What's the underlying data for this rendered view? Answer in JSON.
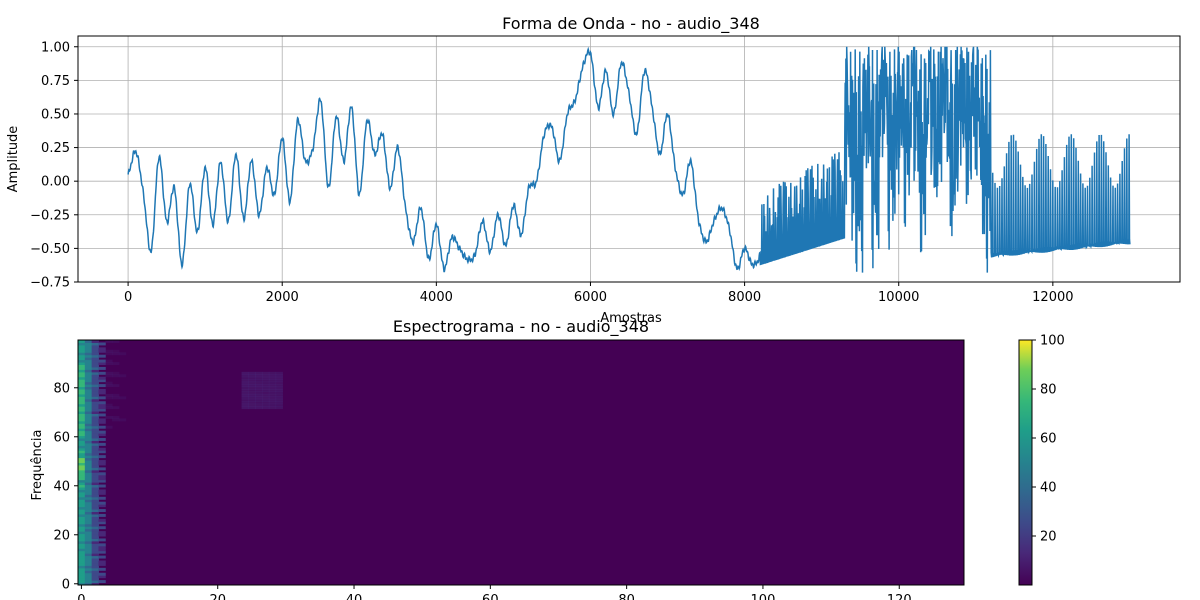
{
  "chart_data": [
    {
      "type": "line",
      "title": "Forma de Onda - no - audio_348",
      "xlabel": "Amostras",
      "ylabel": "Amplitude",
      "xlim": [
        -650,
        13650
      ],
      "ylim": [
        -0.75,
        1.08
      ],
      "grid": true,
      "x_ticks": [
        "0",
        "2000",
        "4000",
        "6000",
        "8000",
        "10000",
        "12000"
      ],
      "y_ticks": [
        "−0.75",
        "−0.50",
        "−0.25",
        "0.00",
        "0.25",
        "0.50",
        "0.75",
        "1.00"
      ],
      "color": "#1f77b4",
      "series": [
        {
          "x": [
            0,
            100,
            200,
            300,
            400,
            500,
            600,
            700,
            800,
            900,
            1000,
            1100,
            1200,
            1300,
            1400,
            1500,
            1600,
            1700,
            1800,
            1900,
            2000,
            2100,
            2200,
            2300,
            2400,
            2500,
            2600,
            2700,
            2800,
            2900,
            3000,
            3100,
            3200,
            3300,
            3400,
            3500,
            3600,
            3700,
            3800,
            3900,
            4000,
            4100,
            4200,
            4300,
            4400,
            4500,
            4600,
            4700,
            4800,
            4900,
            5000,
            5100,
            5200,
            5300,
            5400,
            5500,
            5600,
            5700,
            5800,
            5900,
            6000,
            6100,
            6200,
            6300,
            6400,
            6500,
            6600,
            6700,
            6800,
            6900,
            7000,
            7100,
            7200,
            7300,
            7400,
            7500,
            7600,
            7700,
            7800,
            7900,
            8000,
            8100,
            8200,
            8300,
            8400,
            8500,
            8600,
            8700,
            8800,
            8900,
            9000,
            9100,
            9200,
            9300,
            9400,
            9500,
            9600,
            9700,
            9800,
            9900,
            10000,
            10100,
            10200,
            10300,
            10400,
            10500,
            10600,
            10700,
            10800,
            10900,
            11000,
            11100,
            11200,
            11300,
            11400,
            11500,
            11600,
            11700,
            11800,
            11900,
            12000,
            12100,
            12200,
            12300,
            12400,
            12500,
            12600,
            12700,
            12800,
            12900,
            13000
          ],
          "y": [
            0.05,
            0.22,
            -0.1,
            -0.52,
            0.18,
            -0.3,
            -0.05,
            -0.62,
            -0.02,
            -0.38,
            0.1,
            -0.32,
            0.14,
            -0.3,
            0.2,
            -0.28,
            0.15,
            -0.25,
            0.1,
            -0.1,
            0.32,
            -0.15,
            0.45,
            0.15,
            0.25,
            0.6,
            -0.05,
            0.48,
            0.15,
            0.55,
            -0.1,
            0.45,
            0.2,
            0.35,
            -0.05,
            0.25,
            -0.2,
            -0.45,
            -0.2,
            -0.58,
            -0.32,
            -0.65,
            -0.42,
            -0.5,
            -0.58,
            -0.55,
            -0.3,
            -0.52,
            -0.25,
            -0.48,
            -0.18,
            -0.4,
            -0.05,
            0.0,
            0.35,
            0.4,
            0.15,
            0.5,
            0.6,
            0.85,
            0.95,
            0.55,
            0.82,
            0.5,
            0.88,
            0.65,
            0.35,
            0.82,
            0.55,
            0.2,
            0.5,
            0.1,
            -0.1,
            0.15,
            -0.28,
            -0.45,
            -0.3,
            -0.2,
            -0.35,
            -0.65,
            -0.5,
            -0.62,
            -0.55,
            -0.25,
            -0.55,
            -0.2,
            -0.5,
            -0.1,
            -0.45,
            0.05,
            -0.42,
            0.2,
            -0.35,
            0.5,
            0.1,
            -0.2,
            0.6,
            -0.25,
            0.8,
            0.0,
            0.6,
            0.2,
            0.8,
            -0.1,
            0.7,
            0.2,
            0.85,
            -0.05,
            0.7,
            0.3,
            0.75,
            0.0,
            -0.2,
            -0.45,
            -0.55,
            -0.3,
            -0.5,
            0.0,
            -0.55,
            -0.4,
            -0.52,
            0.2,
            -0.5,
            -0.45,
            0.15,
            -0.45,
            -0.4,
            0.0,
            -0.4,
            -0.3,
            -0.1
          ]
        }
      ]
    },
    {
      "type": "heatmap",
      "title": "Espectrograma - no - audio_348",
      "xlabel": "",
      "ylabel": "Frequência",
      "xlim": [
        -0.5,
        129.5
      ],
      "ylim": [
        -0.5,
        99.5
      ],
      "x_ticks": [
        "0",
        "20",
        "40",
        "60",
        "80",
        "100",
        "120"
      ],
      "y_ticks": [
        "0",
        "20",
        "40",
        "60",
        "80"
      ],
      "colormap": "viridis",
      "colorbar": {
        "min": 0,
        "max": 100,
        "ticks": [
          "20",
          "40",
          "60",
          "80",
          "100"
        ]
      }
    }
  ]
}
